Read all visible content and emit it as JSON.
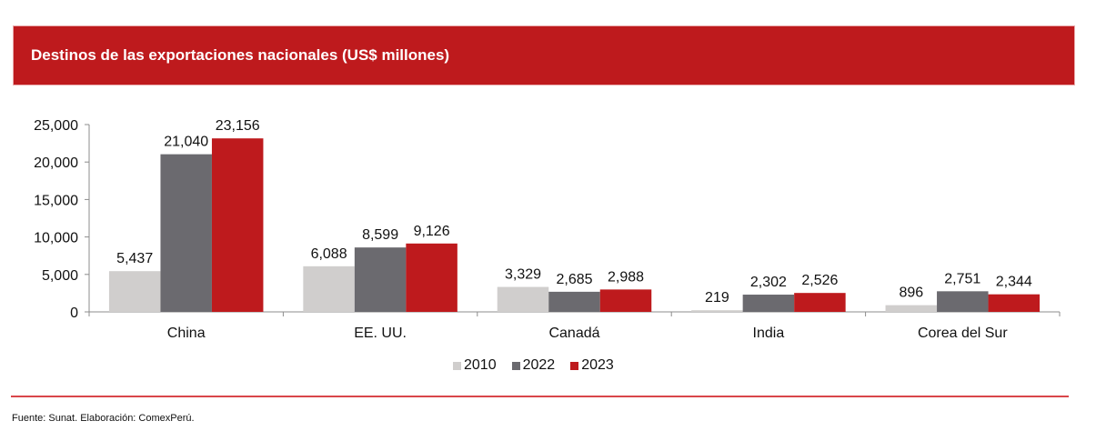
{
  "header": {
    "title": "Destinos de las exportaciones nacionales (US$ millones)"
  },
  "footer": {
    "source": "Fuente: Sunat. Elaboración: ComexPerú."
  },
  "colors": {
    "banner": "#be1a1d",
    "series_2010": "#d0cecd",
    "series_2022": "#6b6a6f",
    "series_2023": "#be1a1d",
    "footer_line": "#d9464a"
  },
  "chart_data": {
    "type": "bar",
    "title": "Destinos de las exportaciones nacionales (US$ millones)",
    "xlabel": "",
    "ylabel": "",
    "categories": [
      "China",
      "EE. UU.",
      "Canadá",
      "India",
      "Corea del Sur"
    ],
    "series": [
      {
        "name": "2010",
        "color": "#d0cecd",
        "values": [
          5437,
          6088,
          3329,
          219,
          896
        ],
        "labels": [
          "5,437",
          "6,088",
          "3,329",
          "219",
          "896"
        ]
      },
      {
        "name": "2022",
        "color": "#6b6a6f",
        "values": [
          21040,
          8599,
          2685,
          2302,
          2751
        ],
        "labels": [
          "21,040",
          "8,599",
          "2,685",
          "2,302",
          "2,751"
        ]
      },
      {
        "name": "2023",
        "color": "#be1a1d",
        "values": [
          23156,
          9126,
          2988,
          2526,
          2344
        ],
        "labels": [
          "23,156",
          "9,126",
          "2,988",
          "2,526",
          "2,344"
        ]
      }
    ],
    "ylim": [
      0,
      25000
    ],
    "yticks": [
      0,
      5000,
      10000,
      15000,
      20000,
      25000
    ],
    "ytick_labels": [
      "0",
      "5,000",
      "10,000",
      "15,000",
      "20,000",
      "25,000"
    ],
    "grid": false,
    "legend": {
      "position": "bottom",
      "entries": [
        "2010",
        "2022",
        "2023"
      ]
    }
  }
}
